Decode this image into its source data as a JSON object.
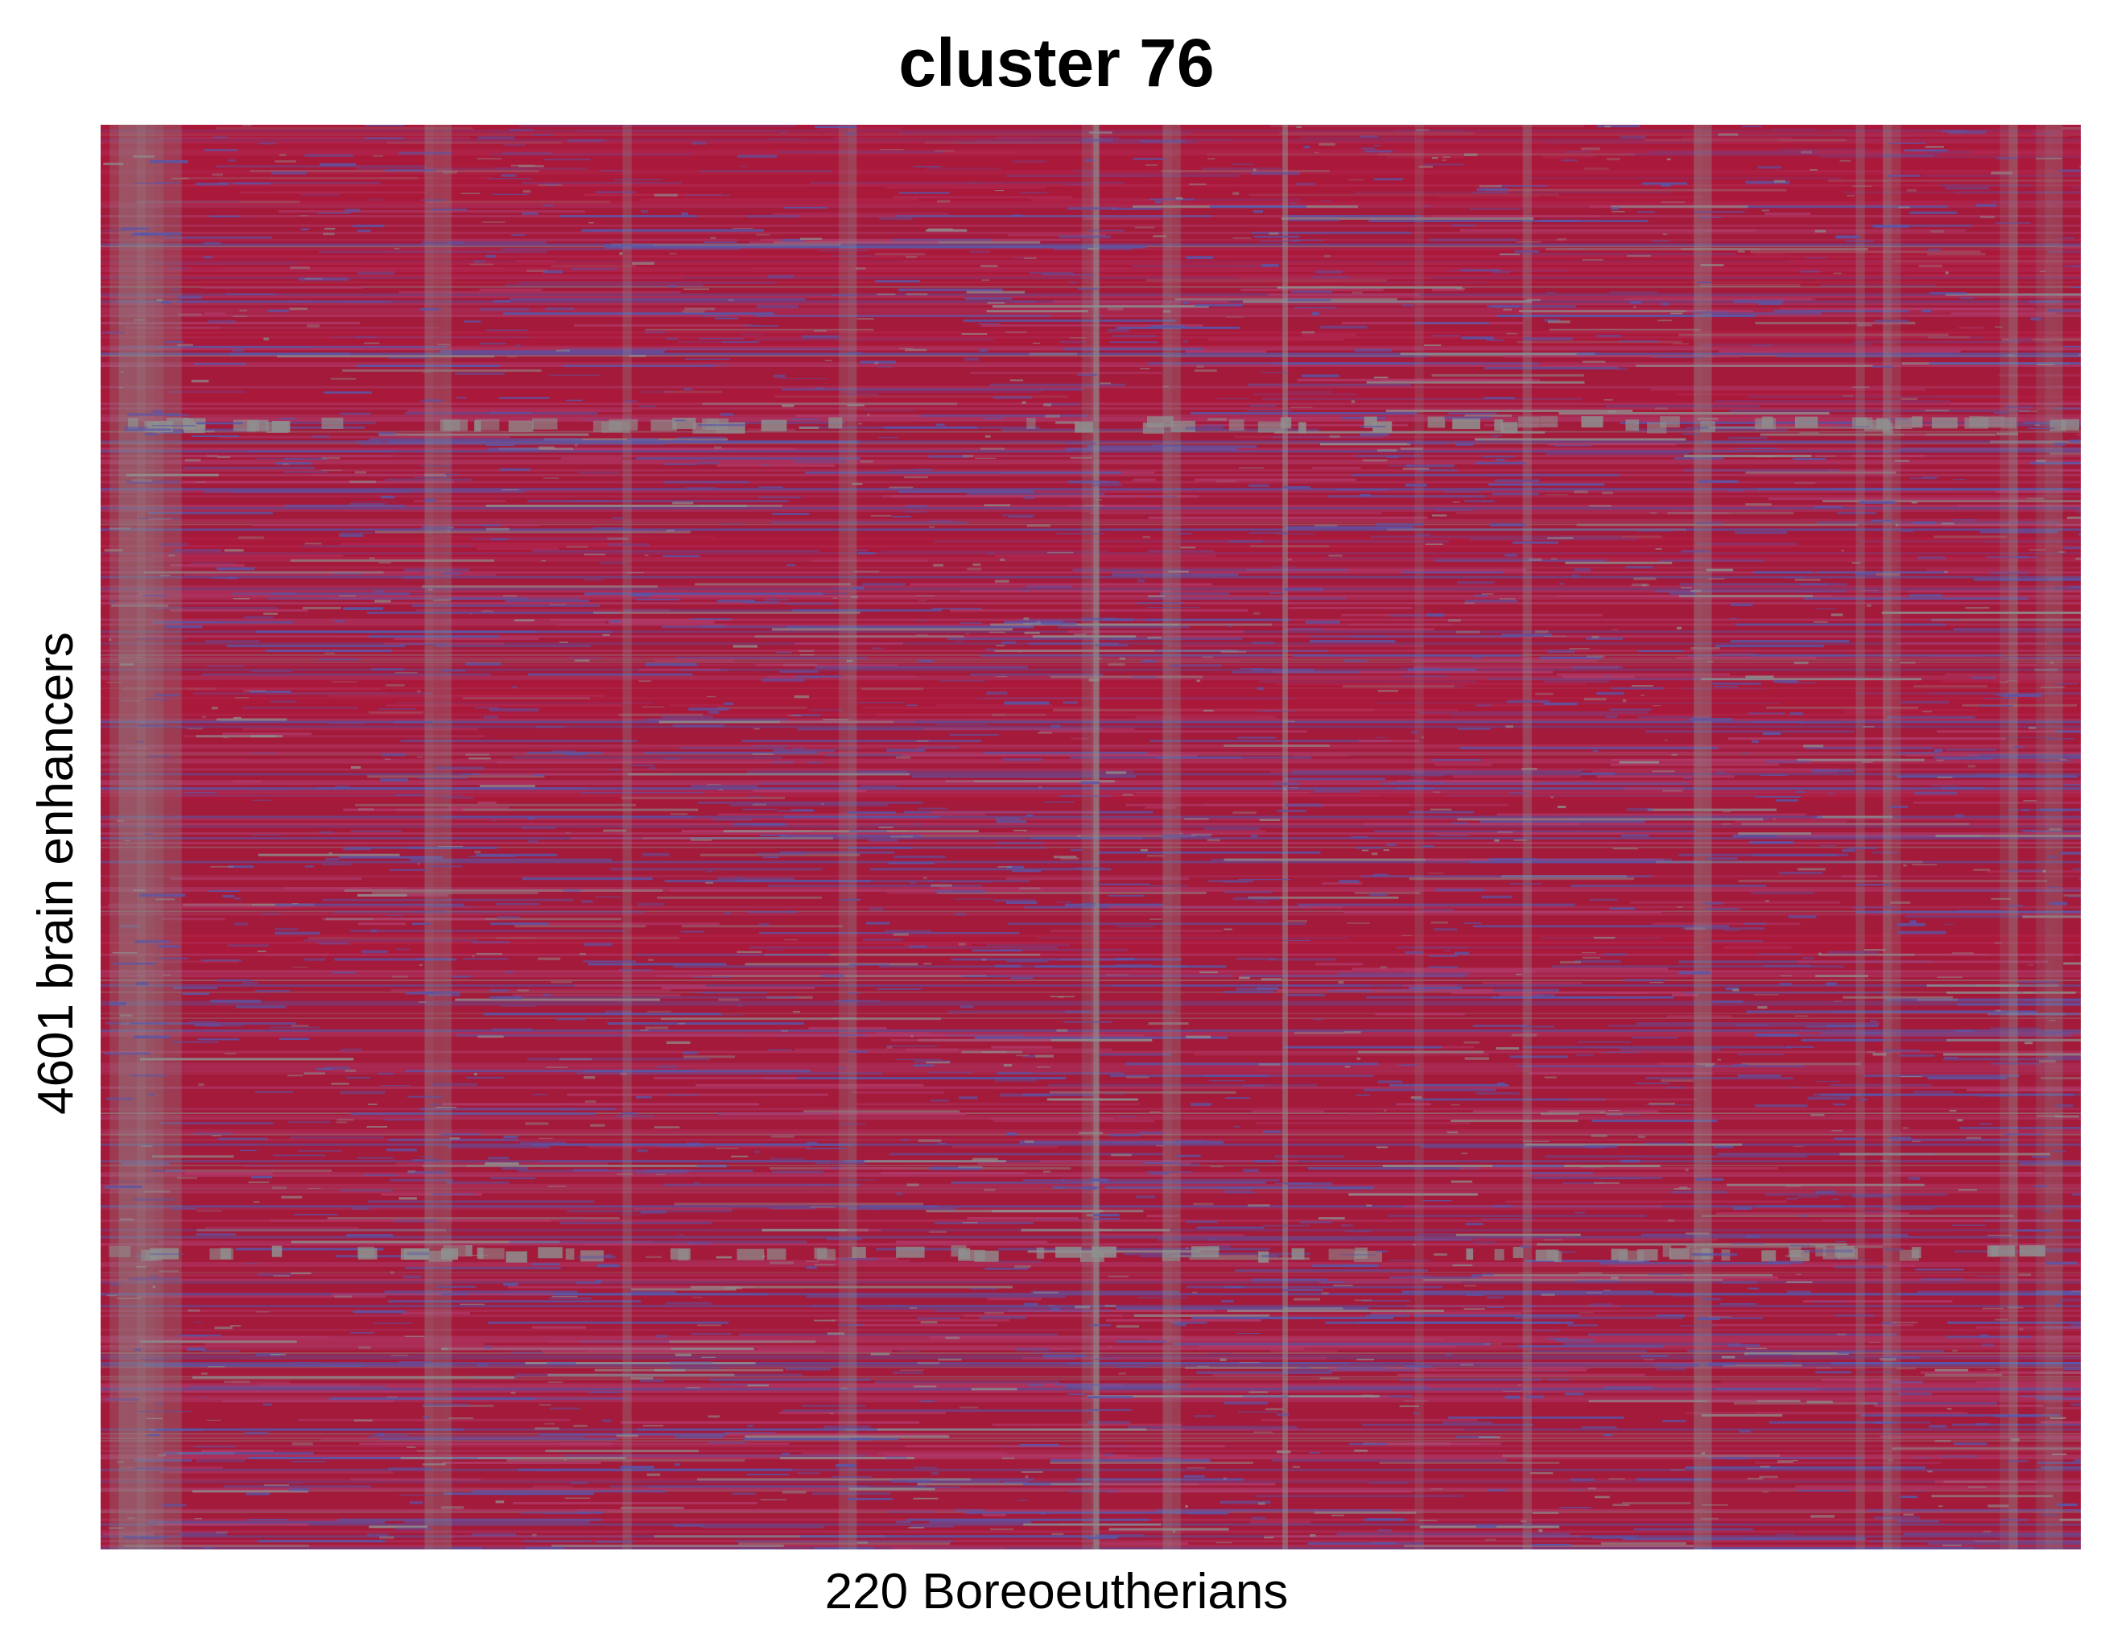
{
  "chart_data": {
    "type": "heatmap",
    "title": "cluster 76",
    "xlabel": "220 Boreoeutherians",
    "ylabel": "4601 brain enhancers",
    "n_columns": 220,
    "n_rows": 4601,
    "legend": "none",
    "grid": false,
    "colors": {
      "dominant": "#a31a3b",
      "dominant_alt": "#b0173a",
      "medium": "#b03a6a",
      "low": "#5a56a8",
      "missing": "#8f8f8f"
    }
  }
}
